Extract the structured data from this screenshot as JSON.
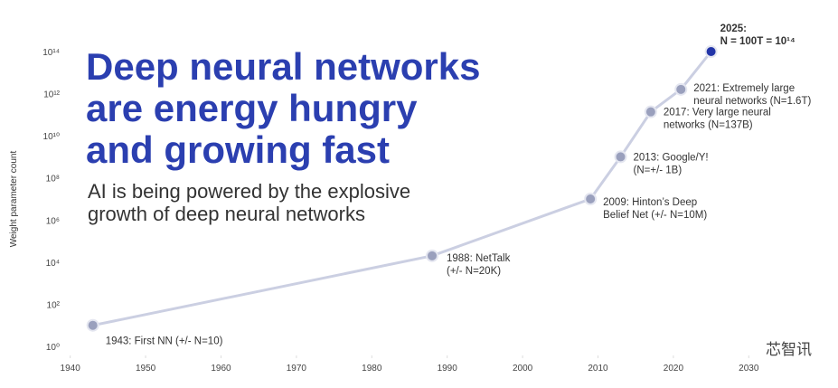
{
  "chart_data": {
    "type": "line",
    "title": [
      "Deep neural networks",
      "are energy hungry",
      "and growing fast"
    ],
    "subtitle": [
      "AI is being powered by the explosive",
      "growth of deep neural networks"
    ],
    "y_label": "Weight parameter count",
    "x": [
      1943,
      1988,
      2009,
      2013,
      2017,
      2021,
      2025
    ],
    "series": [
      {
        "color": "#cbcfe2",
        "values": [
          10,
          20000,
          10000000,
          1000000000,
          137000000000,
          1600000000000,
          100000000000000
        ],
        "point_colors": [
          "#9aa0bd",
          "#9aa0bd",
          "#9aa0bd",
          "#9aa0bd",
          "#9aa0bd",
          "#9aa0bd",
          "#2335a8"
        ]
      }
    ],
    "annotations": [
      {
        "lines": [
          "1943: First NN (+/- N=10)"
        ],
        "color": "#333333"
      },
      {
        "lines": [
          "1988: NetTalk",
          "(+/- N=20K)"
        ],
        "color": "#333333"
      },
      {
        "lines": [
          "2009: Hinton’s Deep",
          "Belief Net (+/- N=10M)"
        ],
        "color": "#333333"
      },
      {
        "lines": [
          "2013: Google/Y!",
          "(N=+/- 1B)"
        ],
        "color": "#333333"
      },
      {
        "lines": [
          "2017: Very large neural",
          "networks (N=137B)"
        ],
        "color": "#333333"
      },
      {
        "lines": [
          "2021: Extremely large",
          "neural networks (N=1.6T)"
        ],
        "color": "#333333"
      },
      {
        "lines": [
          "2025:",
          "N = 100T = 10¹⁴"
        ],
        "color": "#2335a8"
      }
    ],
    "xlim": [
      1938,
      2035
    ],
    "xticks": [
      1940,
      1950,
      1960,
      1970,
      1980,
      1990,
      2000,
      2010,
      2020,
      2030
    ],
    "log_y": true,
    "ylim": [
      1,
      100000000000000
    ],
    "yticks": [
      {
        "value": 1,
        "label": "10⁰"
      },
      {
        "value": 100,
        "label": "10²"
      },
      {
        "value": 10000,
        "label": "10⁴"
      },
      {
        "value": 1000000,
        "label": "10⁶"
      },
      {
        "value": 100000000,
        "label": "10⁸"
      },
      {
        "value": 10000000000,
        "label": "10¹⁰"
      },
      {
        "value": 1000000000000,
        "label": "10¹²"
      },
      {
        "value": 100000000000000,
        "label": "10¹⁴"
      }
    ],
    "grid": false,
    "watermark": "芯智讯"
  }
}
